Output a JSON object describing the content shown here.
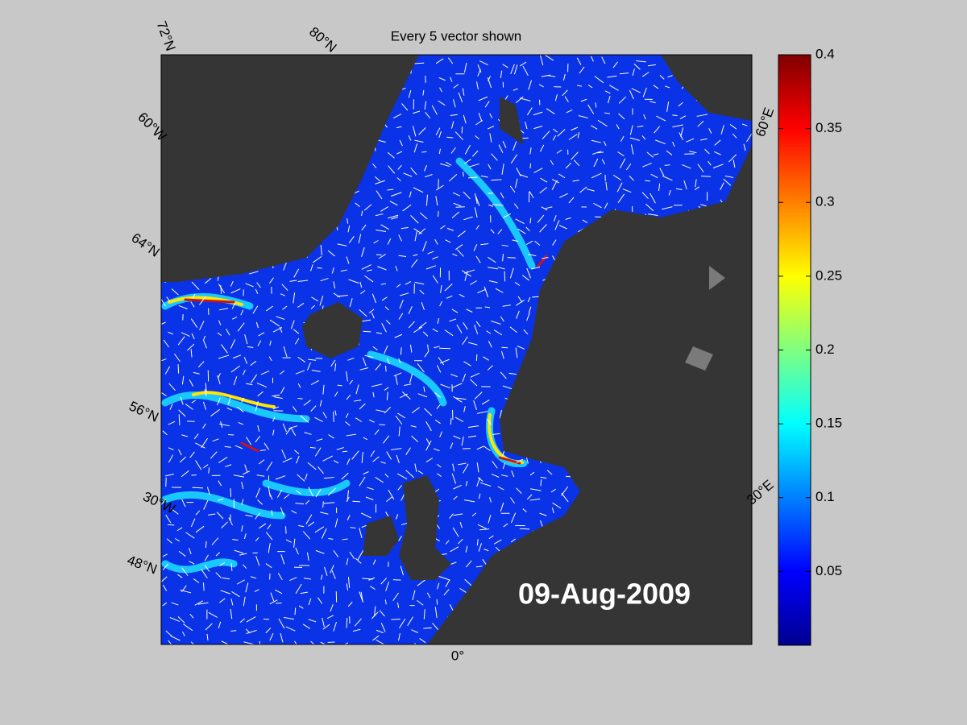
{
  "map": {
    "title": "Every 5 vector shown",
    "date": "09-Aug-2009",
    "grid_labels": [
      "72°N",
      "80°N",
      "60°W",
      "64°N",
      "56°N",
      "30°W",
      "48°N",
      "0°",
      "60°E",
      "30°E"
    ]
  },
  "colorbar": {
    "lim": [
      0,
      0.4
    ],
    "ticks": [
      0.05,
      0.1,
      0.15,
      0.2,
      0.25,
      0.3,
      0.35,
      0.4
    ]
  }
}
